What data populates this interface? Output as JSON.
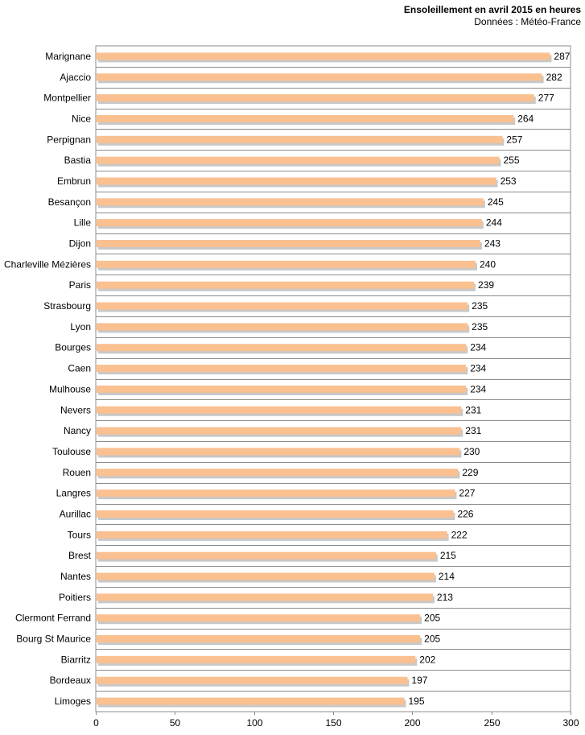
{
  "chart_data": {
    "type": "bar",
    "orientation": "horizontal",
    "title": "Ensoleillement en avril 2015 en heures",
    "subtitle": "Données : Météo-France",
    "xlim": [
      0,
      300
    ],
    "xticks": [
      0,
      50,
      100,
      150,
      200,
      250,
      300
    ],
    "grid": true,
    "bar_color": "#fac090",
    "shadow_color": "#c8c8c8",
    "categories": [
      "Marignane",
      "Ajaccio",
      "Montpellier",
      "Nice",
      "Perpignan",
      "Bastia",
      "Embrun",
      "Besançon",
      "Lille",
      "Dijon",
      "Charleville Mézières",
      "Paris",
      "Strasbourg",
      "Lyon",
      "Bourges",
      "Caen",
      "Mulhouse",
      "Nevers",
      "Nancy",
      "Toulouse",
      "Rouen",
      "Langres",
      "Aurillac",
      "Tours",
      "Brest",
      "Nantes",
      "Poitiers",
      "Clermont Ferrand",
      "Bourg St Maurice",
      "Biarritz",
      "Bordeaux",
      "Limoges"
    ],
    "values": [
      287,
      282,
      277,
      264,
      257,
      255,
      253,
      245,
      244,
      243,
      240,
      239,
      235,
      235,
      234,
      234,
      234,
      231,
      231,
      230,
      229,
      227,
      226,
      222,
      215,
      214,
      213,
      205,
      205,
      202,
      197,
      195
    ]
  }
}
